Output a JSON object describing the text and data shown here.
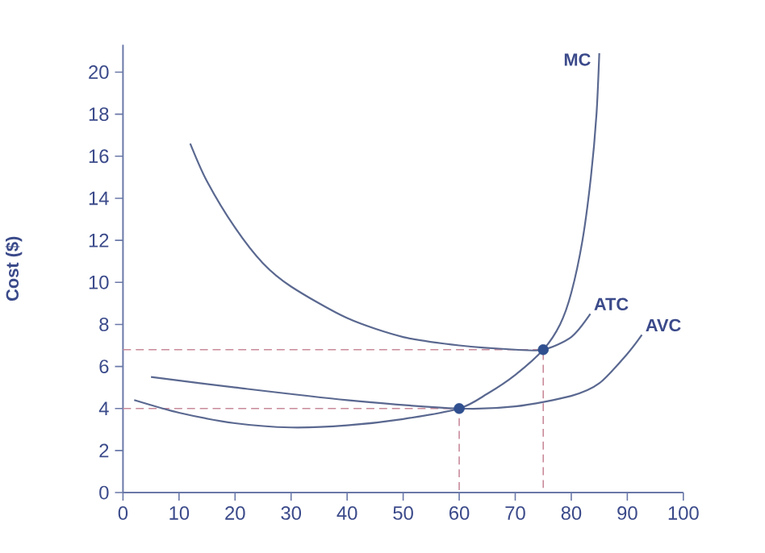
{
  "chart_data": {
    "type": "line",
    "ylabel": "Cost ($)",
    "xlim": [
      0,
      100
    ],
    "ylim": [
      0,
      21.3
    ],
    "xticks": [
      0,
      10,
      20,
      30,
      40,
      50,
      60,
      70,
      80,
      90,
      100
    ],
    "yticks": [
      0,
      2,
      4,
      6,
      8,
      10,
      12,
      14,
      16,
      18,
      20
    ],
    "grid": false,
    "legend": false,
    "series": [
      {
        "line_style": "dashed",
        "color": "#c98a9a",
        "x": [
          0,
          60,
          60
        ],
        "values": [
          4,
          4,
          0
        ]
      },
      {
        "line_style": "dashed",
        "color": "#c98a9a",
        "x": [
          0,
          75,
          75
        ],
        "values": [
          6.8,
          6.8,
          0
        ]
      },
      {
        "name": "MC",
        "color": "#5a6890",
        "x": [
          2,
          10,
          20,
          30,
          40,
          50,
          60,
          65,
          70,
          75,
          78,
          80,
          82,
          83.5,
          84.5,
          85
        ],
        "values": [
          4.4,
          3.8,
          3.3,
          3.1,
          3.2,
          3.5,
          4,
          4.7,
          5.6,
          6.8,
          8,
          9.5,
          12,
          15,
          18,
          20.9
        ]
      },
      {
        "name": "ATC",
        "color": "#5a6890",
        "x": [
          12,
          15,
          20,
          25,
          30,
          40,
          50,
          60,
          70,
          75,
          80,
          83.4
        ],
        "values": [
          16.6,
          14.8,
          12.6,
          10.9,
          9.8,
          8.3,
          7.4,
          7.0,
          6.8,
          6.8,
          7.4,
          8.5
        ]
      },
      {
        "name": "AVC",
        "color": "#5a6890",
        "x": [
          5,
          20,
          40,
          60,
          70,
          80,
          85,
          90,
          92.6
        ],
        "values": [
          5.5,
          5.0,
          4.4,
          4.0,
          4.1,
          4.6,
          5.2,
          6.6,
          7.5
        ]
      },
      {
        "type": "scatter",
        "marker": "circle",
        "color": "#2f4f8f",
        "x": [
          60,
          75
        ],
        "values": [
          4,
          6.8
        ]
      }
    ]
  }
}
